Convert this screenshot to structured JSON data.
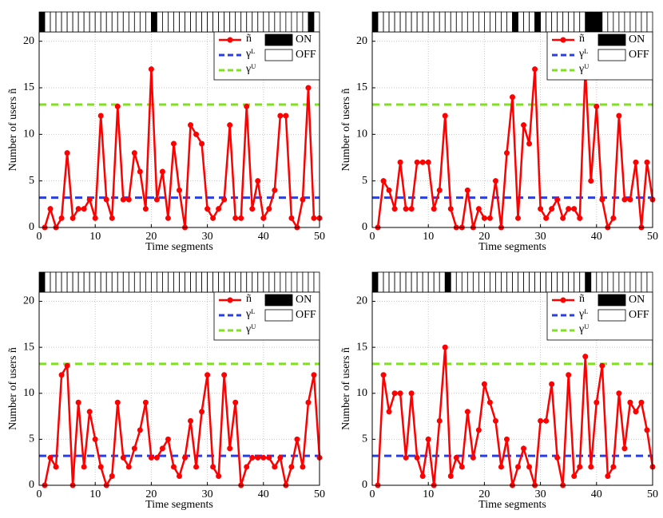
{
  "chart_data": [
    {
      "type": "line",
      "xlabel": "Time segments",
      "ylabel": "Number of users ñ",
      "x": [
        1,
        2,
        3,
        4,
        5,
        6,
        7,
        8,
        9,
        10,
        11,
        12,
        13,
        14,
        15,
        16,
        17,
        18,
        19,
        20,
        21,
        22,
        23,
        24,
        25,
        26,
        27,
        28,
        29,
        30,
        31,
        32,
        33,
        34,
        35,
        36,
        37,
        38,
        39,
        40,
        41,
        42,
        43,
        44,
        45,
        46,
        47,
        48,
        49,
        50
      ],
      "series": [
        {
          "name": "ñ",
          "color": "#ff0000",
          "values": [
            0,
            2,
            0,
            1,
            8,
            1,
            2,
            2,
            3,
            1,
            12,
            3,
            1,
            13,
            3,
            3,
            8,
            6,
            2,
            17,
            3,
            6,
            1,
            9,
            4,
            0,
            11,
            10,
            9,
            2,
            1,
            2,
            3,
            11,
            1,
            1,
            13,
            2,
            5,
            1,
            2,
            4,
            12,
            12,
            1,
            0,
            3,
            15,
            1,
            1
          ]
        }
      ],
      "thresholds": [
        {
          "name": "γᴸ",
          "color": "#2a3fe0",
          "value": 3.2
        },
        {
          "name": "γᵁ",
          "color": "#7fe020",
          "value": 13.2
        }
      ],
      "states": {
        "names": [
          "ON",
          "OFF"
        ],
        "values": [
          1,
          0,
          0,
          0,
          0,
          0,
          0,
          0,
          0,
          0,
          0,
          0,
          0,
          0,
          0,
          0,
          0,
          0,
          0,
          0,
          1,
          0,
          0,
          0,
          0,
          0,
          0,
          0,
          0,
          0,
          0,
          0,
          0,
          0,
          0,
          0,
          0,
          0,
          0,
          0,
          0,
          0,
          0,
          0,
          0,
          0,
          0,
          0,
          1,
          0
        ]
      },
      "xlim": [
        0,
        50
      ],
      "xticks": [
        0,
        10,
        20,
        30,
        40,
        50
      ],
      "ylim": [
        0,
        21
      ],
      "yticks": [
        0,
        5,
        10,
        15,
        20
      ],
      "grid": true,
      "legend": "upper right"
    },
    {
      "type": "line",
      "xlabel": "Time segments",
      "ylabel": "Number of users ñ",
      "x": [
        1,
        2,
        3,
        4,
        5,
        6,
        7,
        8,
        9,
        10,
        11,
        12,
        13,
        14,
        15,
        16,
        17,
        18,
        19,
        20,
        21,
        22,
        23,
        24,
        25,
        26,
        27,
        28,
        29,
        30,
        31,
        32,
        33,
        34,
        35,
        36,
        37,
        38,
        39,
        40,
        41,
        42,
        43,
        44,
        45,
        46,
        47,
        48,
        49,
        50
      ],
      "series": [
        {
          "name": "ñ",
          "color": "#ff0000",
          "values": [
            0,
            5,
            4,
            2,
            7,
            2,
            2,
            7,
            7,
            7,
            2,
            4,
            12,
            2,
            0,
            0,
            4,
            0,
            2,
            1,
            1,
            5,
            0,
            8,
            14,
            1,
            11,
            9,
            17,
            2,
            1,
            2,
            3,
            1,
            2,
            2,
            1,
            17,
            5,
            13,
            3,
            0,
            1,
            12,
            3,
            3,
            7,
            0,
            7,
            3
          ]
        }
      ],
      "thresholds": [
        {
          "name": "γᴸ",
          "color": "#2a3fe0",
          "value": 3.2
        },
        {
          "name": "γᵁ",
          "color": "#7fe020",
          "value": 13.2
        }
      ],
      "states": {
        "names": [
          "ON",
          "OFF"
        ],
        "values": [
          1,
          0,
          0,
          0,
          0,
          0,
          0,
          0,
          0,
          0,
          0,
          0,
          0,
          0,
          0,
          0,
          0,
          0,
          0,
          0,
          0,
          0,
          0,
          0,
          0,
          1,
          0,
          0,
          0,
          1,
          0,
          0,
          0,
          0,
          0,
          0,
          0,
          0,
          1,
          1,
          1,
          0,
          0,
          0,
          0,
          0,
          0,
          0,
          0,
          0
        ]
      },
      "xlim": [
        0,
        50
      ],
      "xticks": [
        0,
        10,
        20,
        30,
        40,
        50
      ],
      "ylim": [
        0,
        21
      ],
      "yticks": [
        0,
        5,
        10,
        15,
        20
      ],
      "grid": true,
      "legend": "upper right"
    },
    {
      "type": "line",
      "xlabel": "Time segments",
      "ylabel": "Number of users ñ",
      "x": [
        1,
        2,
        3,
        4,
        5,
        6,
        7,
        8,
        9,
        10,
        11,
        12,
        13,
        14,
        15,
        16,
        17,
        18,
        19,
        20,
        21,
        22,
        23,
        24,
        25,
        26,
        27,
        28,
        29,
        30,
        31,
        32,
        33,
        34,
        35,
        36,
        37,
        38,
        39,
        40,
        41,
        42,
        43,
        44,
        45,
        46,
        47,
        48,
        49,
        50
      ],
      "series": [
        {
          "name": "ñ",
          "color": "#ff0000",
          "values": [
            0,
            3,
            2,
            12,
            13,
            0,
            9,
            2,
            8,
            5,
            2,
            0,
            1,
            9,
            3,
            2,
            4,
            6,
            9,
            3,
            3,
            4,
            5,
            2,
            1,
            3,
            7,
            2,
            8,
            12,
            2,
            1,
            12,
            4,
            9,
            0,
            2,
            3,
            3,
            3,
            3,
            2,
            3,
            0,
            2,
            5,
            2,
            9,
            12,
            3
          ]
        }
      ],
      "thresholds": [
        {
          "name": "γᴸ",
          "color": "#2a3fe0",
          "value": 3.2
        },
        {
          "name": "γᵁ",
          "color": "#7fe020",
          "value": 13.2
        }
      ],
      "states": {
        "names": [
          "ON",
          "OFF"
        ],
        "values": [
          1,
          0,
          0,
          0,
          0,
          0,
          0,
          0,
          0,
          0,
          0,
          0,
          0,
          0,
          0,
          0,
          0,
          0,
          0,
          0,
          0,
          0,
          0,
          0,
          0,
          0,
          0,
          0,
          0,
          0,
          0,
          0,
          0,
          0,
          0,
          0,
          0,
          0,
          0,
          0,
          0,
          0,
          0,
          0,
          0,
          0,
          0,
          0,
          0,
          0
        ]
      },
      "xlim": [
        0,
        50
      ],
      "xticks": [
        0,
        10,
        20,
        30,
        40,
        50
      ],
      "ylim": [
        0,
        21
      ],
      "yticks": [
        0,
        5,
        10,
        15,
        20
      ],
      "grid": true,
      "legend": "upper right"
    },
    {
      "type": "line",
      "xlabel": "Time segments",
      "ylabel": "Number of users ñ",
      "x": [
        1,
        2,
        3,
        4,
        5,
        6,
        7,
        8,
        9,
        10,
        11,
        12,
        13,
        14,
        15,
        16,
        17,
        18,
        19,
        20,
        21,
        22,
        23,
        24,
        25,
        26,
        27,
        28,
        29,
        30,
        31,
        32,
        33,
        34,
        35,
        36,
        37,
        38,
        39,
        40,
        41,
        42,
        43,
        44,
        45,
        46,
        47,
        48,
        49,
        50
      ],
      "series": [
        {
          "name": "ñ",
          "color": "#ff0000",
          "values": [
            0,
            12,
            8,
            10,
            10,
            3,
            10,
            3,
            1,
            5,
            0,
            7,
            15,
            1,
            3,
            2,
            8,
            3,
            6,
            11,
            9,
            7,
            2,
            5,
            0,
            2,
            4,
            2,
            0,
            7,
            7,
            11,
            3,
            0,
            12,
            1,
            2,
            14,
            2,
            9,
            13,
            1,
            2,
            10,
            4,
            9,
            8,
            9,
            6,
            2
          ]
        }
      ],
      "thresholds": [
        {
          "name": "γᴸ",
          "color": "#2a3fe0",
          "value": 3.2
        },
        {
          "name": "γᵁ",
          "color": "#7fe020",
          "value": 13.2
        }
      ],
      "states": {
        "names": [
          "ON",
          "OFF"
        ],
        "values": [
          1,
          0,
          0,
          0,
          0,
          0,
          0,
          0,
          0,
          0,
          0,
          0,
          0,
          1,
          0,
          0,
          0,
          0,
          0,
          0,
          0,
          0,
          0,
          0,
          0,
          0,
          0,
          0,
          0,
          0,
          0,
          0,
          0,
          0,
          0,
          0,
          0,
          0,
          1,
          0,
          0,
          0,
          0,
          0,
          0,
          0,
          0,
          0,
          0,
          0
        ]
      },
      "xlim": [
        0,
        50
      ],
      "xticks": [
        0,
        10,
        20,
        30,
        40,
        50
      ],
      "ylim": [
        0,
        21
      ],
      "yticks": [
        0,
        5,
        10,
        15,
        20
      ],
      "grid": true,
      "legend": "upper right"
    }
  ]
}
